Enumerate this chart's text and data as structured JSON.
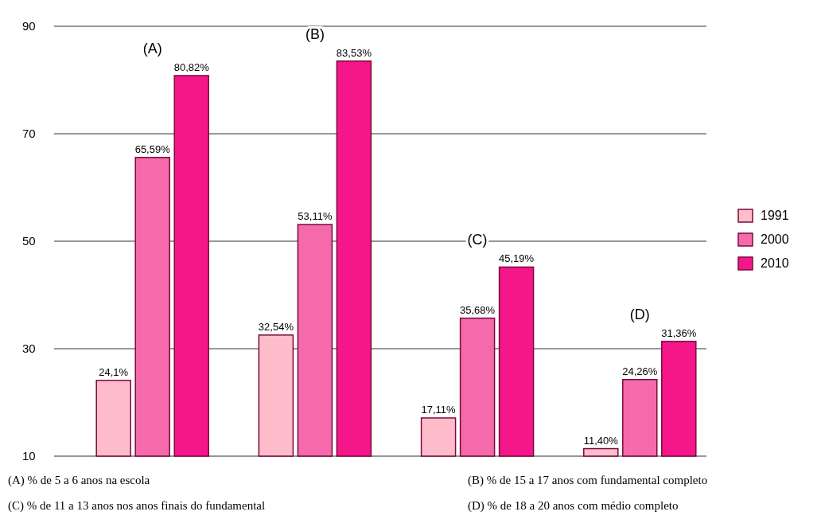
{
  "chart_data": {
    "type": "bar",
    "categories": [
      "(A)",
      "(B)",
      "(C)",
      "(D)"
    ],
    "series": [
      {
        "name": "1991",
        "color": "#ffbccb",
        "values": [
          24.1,
          32.54,
          17.11,
          11.4
        ],
        "value_labels": [
          "24,1%",
          "32,54%",
          "17,11%",
          "11,40%"
        ]
      },
      {
        "name": "2000",
        "color": "#f56aaa",
        "values": [
          65.59,
          53.11,
          35.68,
          24.26
        ],
        "value_labels": [
          "65,59%",
          "53,11%",
          "35,68%",
          "24,26%"
        ]
      },
      {
        "name": "2010",
        "color": "#f5168a",
        "values": [
          80.82,
          83.53,
          45.19,
          31.36
        ],
        "value_labels": [
          "80,82%",
          "83,53%",
          "45,19%",
          "31,36%"
        ]
      }
    ],
    "ylim": [
      10,
      90
    ],
    "yticks": [
      10,
      30,
      50,
      70,
      90
    ],
    "grid": "y",
    "legend": "right",
    "annotations": [
      "(A) % de 5 a 6 anos na escola",
      "(B) % de 15 a 17 anos com fundamental completo",
      "(C) % de 11 a 13 anos nos anos finais do fundamental",
      "(D) % de 18 a 20 anos com médio completo"
    ]
  }
}
